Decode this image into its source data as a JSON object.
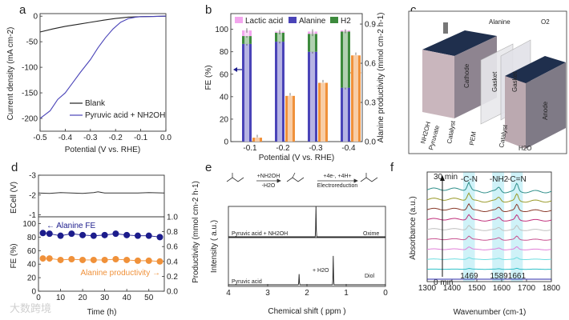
{
  "panel_labels": [
    "a",
    "b",
    "c",
    "d",
    "e",
    "f"
  ],
  "watermark": "大数跨境",
  "colors": {
    "blue": "#3b3ba8",
    "navy": "#1c1c8c",
    "orange": "#f0913a",
    "green": "#3d8a3d",
    "pink": "#ee7be6",
    "black": "#222222"
  },
  "chart_data": [
    {
      "id": "a",
      "type": "line",
      "xlabel": "Potential (V vs. RHE)",
      "ylabel": "Current density (mA cm-2)",
      "xlim": [
        -0.5,
        0.0
      ],
      "ylim": [
        -225,
        5
      ],
      "xticks": [
        "-0.5",
        "-0.4",
        "-0.3",
        "-0.2",
        "-0.1",
        "0.0"
      ],
      "yticks": [
        "0",
        "-50",
        "-100",
        "-150",
        "-200"
      ],
      "series": [
        {
          "name": "Blank",
          "color": "#222222",
          "x": [
            -0.5,
            -0.45,
            -0.4,
            -0.35,
            -0.3,
            -0.25,
            -0.2,
            -0.15,
            -0.1,
            -0.05,
            0
          ],
          "y": [
            -31,
            -25,
            -20,
            -16,
            -12,
            -8,
            -4.5,
            -2,
            -1,
            -0.5,
            0
          ]
        },
        {
          "name": "Pyruvic acid + NH2OH",
          "color": "#4a44b8",
          "x": [
            -0.5,
            -0.46,
            -0.43,
            -0.4,
            -0.37,
            -0.34,
            -0.3,
            -0.27,
            -0.24,
            -0.21,
            -0.18,
            -0.15,
            -0.12,
            -0.1,
            -0.05,
            0
          ],
          "y": [
            -200,
            -185,
            -163,
            -150,
            -130,
            -110,
            -85,
            -62,
            -42,
            -25,
            -12,
            -5,
            -2,
            -1,
            -0.5,
            0
          ]
        }
      ]
    },
    {
      "id": "b",
      "type": "bar",
      "xlabel": "Potential (V vs. RHE)",
      "ylabel": "FE (%)",
      "ylabel_right": "Alanine productivity (mmol cm-2 h-1)",
      "categories": [
        "-0.1",
        "-0.2",
        "-0.3",
        "-0.4"
      ],
      "ylim": [
        0,
        114
      ],
      "ylim_right": [
        0,
        0.98
      ],
      "yticks": [
        "0",
        "20",
        "40",
        "60",
        "80",
        "100"
      ],
      "yticks_right": [
        "0.0",
        "0.3",
        "0.6",
        "0.9"
      ],
      "legend": [
        "Lactic acid",
        "Alanine",
        "H2"
      ],
      "series": [
        {
          "name": "Alanine",
          "values": [
            87,
            89,
            80,
            48
          ],
          "err": [
            1.5,
            1.5,
            1.5,
            1.5
          ]
        },
        {
          "name": "H2",
          "values": [
            7,
            8,
            16,
            50
          ],
          "err": [
            1.5,
            1.5,
            2,
            1.5
          ]
        },
        {
          "name": "Lactic acid",
          "values": [
            5,
            1,
            2,
            1
          ],
          "err": [
            2,
            1.5,
            2,
            1
          ]
        },
        {
          "name": "Alanine productivity",
          "axis": "right",
          "values": [
            0.03,
            0.35,
            0.45,
            0.66
          ],
          "err": [
            0.01,
            0.01,
            0.01,
            0.01
          ]
        }
      ]
    },
    {
      "id": "d",
      "type": "line",
      "xlabel": "Time (h)",
      "ylabel_top": "ECell (V)",
      "ylabel": "FE (%)",
      "ylabel_right": "Productivity (mmol cm-2 h-1)",
      "xlim": [
        0,
        57
      ],
      "ylim_top": [
        -3,
        -0.9
      ],
      "ylim": [
        0,
        110
      ],
      "ylim_right": [
        0,
        1.0
      ],
      "xticks": [
        "0",
        "10",
        "20",
        "30",
        "40",
        "50"
      ],
      "yticks_top": [
        "-3",
        "-2",
        "-1"
      ],
      "yticks": [
        "0",
        "20",
        "40",
        "60",
        "80",
        "100"
      ],
      "yticks_right": [
        "0.0",
        "0.2",
        "0.4",
        "0.6",
        "0.8",
        "1.0"
      ],
      "ecell": {
        "x": [
          0,
          5,
          10,
          15,
          20,
          25,
          27,
          30,
          35,
          40,
          45,
          50,
          57
        ],
        "y": [
          -2.1,
          -2.08,
          -2.12,
          -2.1,
          -2.08,
          -2.12,
          -2.16,
          -2.1,
          -2.1,
          -2.1,
          -2.1,
          -2.12,
          -2.1
        ]
      },
      "series": [
        {
          "name": "Alanine FE",
          "label": "← Alanine FE",
          "axis": "left",
          "x": [
            2,
            5,
            10,
            15,
            20,
            25,
            30,
            35,
            40,
            45,
            50,
            55
          ],
          "y": [
            86,
            85,
            82,
            85,
            83,
            82,
            83,
            85,
            83,
            82,
            82,
            80
          ]
        },
        {
          "name": "Alanine productivity",
          "label": "Alanine productivity →",
          "axis": "right",
          "x": [
            2,
            5,
            10,
            15,
            20,
            25,
            30,
            35,
            40,
            45,
            50,
            55
          ],
          "y": [
            0.44,
            0.44,
            0.42,
            0.43,
            0.42,
            0.42,
            0.42,
            0.43,
            0.42,
            0.41,
            0.41,
            0.4
          ]
        }
      ]
    },
    {
      "id": "e",
      "type": "line",
      "xlabel": "Chemical shift ( ppm )",
      "ylabel": "Intensity  ( a.u.)",
      "xlim": [
        4,
        0
      ],
      "xticks": [
        "4",
        "3",
        "2",
        "1",
        "0"
      ],
      "scheme": {
        "step1_top": "+NH2OH",
        "step1_bottom": "-H2O",
        "step2_top": "+4e-, +4H+",
        "step2_bottom": "Electroreduction"
      },
      "traces": [
        {
          "name": "Pyruvic acid + NH2OH",
          "annotation": "Oxime",
          "peaks": [
            {
              "ppm": 1.77,
              "height": 1.0
            }
          ]
        },
        {
          "name": "Pyruvic acid",
          "annotation": "Diol",
          "equation": "+ H2O",
          "peaks": [
            {
              "ppm": 2.2,
              "height": 0.35
            },
            {
              "ppm": 1.33,
              "height": 0.95
            }
          ]
        }
      ]
    },
    {
      "id": "f",
      "type": "line",
      "xlabel": "Wavenumber (cm-1)",
      "ylabel": "Absorbance (a.u.)",
      "xlim": [
        1300,
        1800
      ],
      "xticks": [
        "1300",
        "1400",
        "1500",
        "1600",
        "1700",
        "1800"
      ],
      "time_start": "0 min",
      "time_end": "30 min",
      "bands": [
        {
          "label": "-C-N",
          "center": 1469,
          "range": [
            1445,
            1492
          ]
        },
        {
          "label": "-NH2",
          "center": 1589,
          "range": [
            1562,
            1610
          ]
        },
        {
          "label": "-C=N",
          "center": 1661,
          "range": [
            1637,
            1685
          ]
        }
      ],
      "trace_colors": [
        "#2b2ba8",
        "#2fc0c8",
        "#6fdde0",
        "#e07fd8",
        "#c8508f",
        "#c0c0c0",
        "#c02e7a",
        "#8a3a2a",
        "#9a9a2a",
        "#2f8f8a"
      ]
    }
  ],
  "panel_c": {
    "labels": [
      "Alanine",
      "O2",
      "Cathode",
      "Gasket",
      "Gasket",
      "Anode",
      "NH2OH",
      "Pyruvate",
      "Catalyst",
      "PEM",
      "Catalyst",
      "H2O"
    ]
  }
}
